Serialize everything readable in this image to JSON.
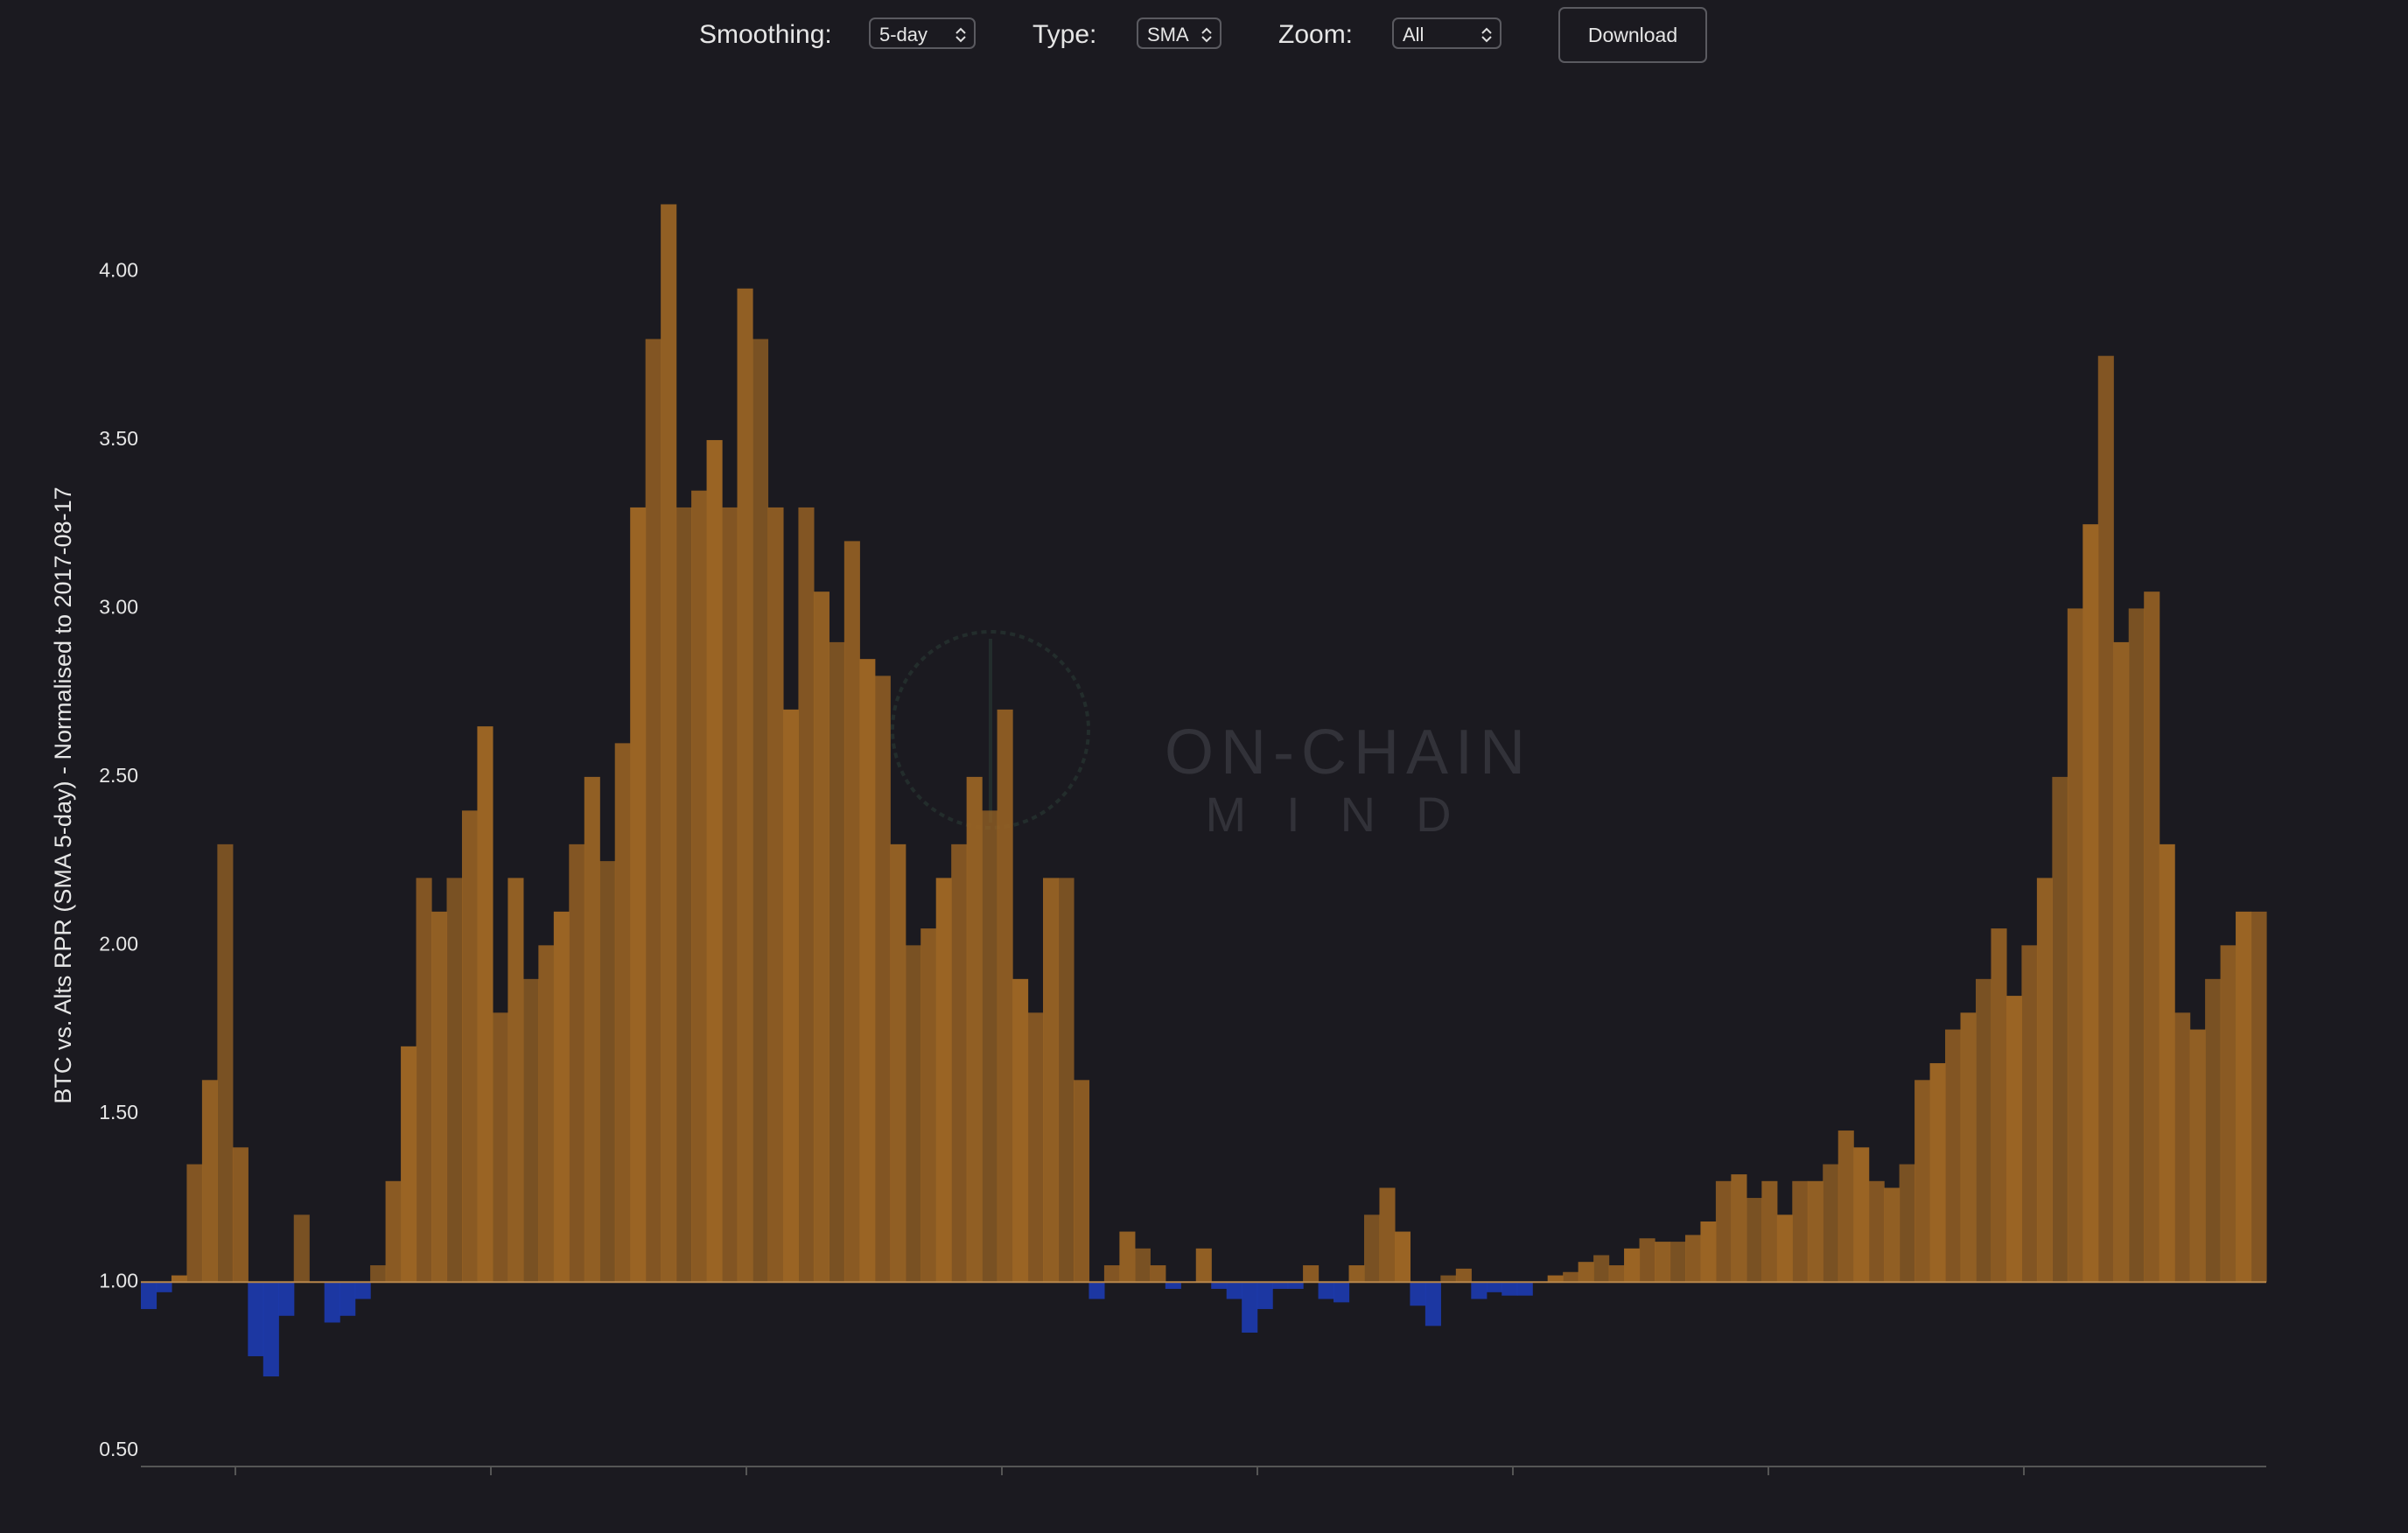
{
  "controls": {
    "smoothing": {
      "label": "Smoothing:",
      "value": "5-day"
    },
    "type": {
      "label": "Type:",
      "value": "SMA"
    },
    "zoom": {
      "label": "Zoom:",
      "value": "All"
    },
    "download": "Download"
  },
  "watermark": {
    "line1": "ON-CHAIN",
    "line2": "MIND"
  },
  "chart_data": {
    "type": "area",
    "ylabel": "BTC vs. Alts RPR (SMA 5-day) - Normalised to 2017-08-17",
    "ylim": [
      0.45,
      4.5
    ],
    "yticks": [
      {
        "value": 0.5,
        "label": "0.50"
      },
      {
        "value": 1,
        "label": "1.00"
      },
      {
        "value": 1.5,
        "label": "1.50"
      },
      {
        "value": 2,
        "label": "2.00"
      },
      {
        "value": 2.5,
        "label": "2.50"
      },
      {
        "value": 3,
        "label": "3.00"
      },
      {
        "value": 3.5,
        "label": "3.50"
      },
      {
        "value": 4,
        "label": "4.00"
      }
    ],
    "baseline": 1,
    "color_above": "#9a6424",
    "color_below": "#1d3bb0",
    "values": [
      0.92,
      0.97,
      1.02,
      1.35,
      1.6,
      2.3,
      1.4,
      0.78,
      0.72,
      0.9,
      1.2,
      1.0,
      0.88,
      0.9,
      0.95,
      1.05,
      1.3,
      1.7,
      2.2,
      2.1,
      2.2,
      2.4,
      2.65,
      1.8,
      2.2,
      1.9,
      2.0,
      2.1,
      2.3,
      2.5,
      2.25,
      2.6,
      3.3,
      3.8,
      4.2,
      3.3,
      3.35,
      3.5,
      3.3,
      3.95,
      3.8,
      3.3,
      2.7,
      3.3,
      3.05,
      2.9,
      3.2,
      2.85,
      2.8,
      2.3,
      2.0,
      2.05,
      2.2,
      2.3,
      2.5,
      2.4,
      2.7,
      1.9,
      1.8,
      2.2,
      2.2,
      1.6,
      0.95,
      1.05,
      1.15,
      1.1,
      1.05,
      0.98,
      1.0,
      1.1,
      0.98,
      0.95,
      0.85,
      0.92,
      0.98,
      0.98,
      1.05,
      0.95,
      0.94,
      1.05,
      1.2,
      1.28,
      1.15,
      0.93,
      0.87,
      1.02,
      1.04,
      0.95,
      0.97,
      0.96,
      0.96,
      1.0,
      1.02,
      1.03,
      1.06,
      1.08,
      1.05,
      1.1,
      1.13,
      1.12,
      1.12,
      1.14,
      1.18,
      1.3,
      1.32,
      1.25,
      1.3,
      1.2,
      1.3,
      1.3,
      1.35,
      1.45,
      1.4,
      1.3,
      1.28,
      1.35,
      1.6,
      1.65,
      1.75,
      1.8,
      1.9,
      2.05,
      1.85,
      2.0,
      2.2,
      2.5,
      3.0,
      3.25,
      3.75,
      2.9,
      3.0,
      3.05,
      2.3,
      1.8,
      1.75,
      1.9,
      2.0,
      2.1,
      2.1
    ]
  }
}
